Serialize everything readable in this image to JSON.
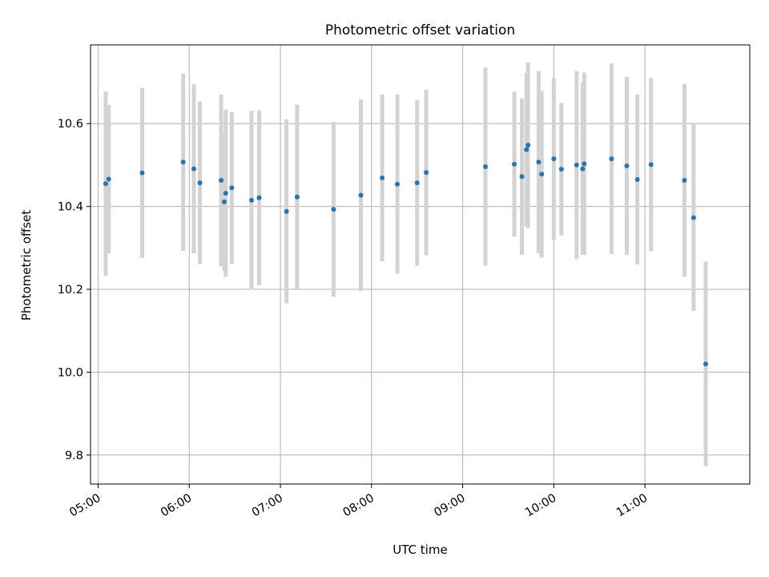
{
  "chart_data": {
    "type": "scatter",
    "title": "Photometric offset variation",
    "xlabel": "UTC time",
    "ylabel": "Photometric offset",
    "xlim": [
      "04:55",
      "12:09"
    ],
    "ylim": [
      9.73,
      10.79
    ],
    "grid": true,
    "x_ticks": [
      "05:00",
      "06:00",
      "07:00",
      "08:00",
      "09:00",
      "10:00",
      "11:00"
    ],
    "y_ticks": [
      9.8,
      10.0,
      10.2,
      10.4,
      10.6
    ],
    "y_tick_labels": [
      "9.8",
      "10.0",
      "10.2",
      "10.4",
      "10.6"
    ],
    "colors": {
      "point": "#1f77b4",
      "errorbar": "#d3d3d3",
      "grid": "#b0b0b0"
    },
    "series": [
      {
        "points": [
          {
            "t": "05:05",
            "y": 10.455,
            "lo": 10.233,
            "hi": 10.677
          },
          {
            "t": "05:07",
            "y": 10.466,
            "lo": 10.287,
            "hi": 10.645
          },
          {
            "t": "05:29",
            "y": 10.481,
            "lo": 10.276,
            "hi": 10.686
          },
          {
            "t": "05:56",
            "y": 10.507,
            "lo": 10.293,
            "hi": 10.721
          },
          {
            "t": "06:03",
            "y": 10.491,
            "lo": 10.287,
            "hi": 10.695
          },
          {
            "t": "06:07",
            "y": 10.457,
            "lo": 10.261,
            "hi": 10.653
          },
          {
            "t": "06:21",
            "y": 10.463,
            "lo": 10.256,
            "hi": 10.67
          },
          {
            "t": "06:23",
            "y": 10.411,
            "lo": 10.245,
            "hi": 10.577
          },
          {
            "t": "06:24",
            "y": 10.432,
            "lo": 10.23,
            "hi": 10.634
          },
          {
            "t": "06:28",
            "y": 10.445,
            "lo": 10.262,
            "hi": 10.628
          },
          {
            "t": "06:41",
            "y": 10.415,
            "lo": 10.199,
            "hi": 10.631
          },
          {
            "t": "06:46",
            "y": 10.421,
            "lo": 10.21,
            "hi": 10.632
          },
          {
            "t": "07:04",
            "y": 10.388,
            "lo": 10.166,
            "hi": 10.61
          },
          {
            "t": "07:11",
            "y": 10.423,
            "lo": 10.2,
            "hi": 10.646
          },
          {
            "t": "07:35",
            "y": 10.393,
            "lo": 10.182,
            "hi": 10.604
          },
          {
            "t": "07:53",
            "y": 10.427,
            "lo": 10.196,
            "hi": 10.658
          },
          {
            "t": "08:07",
            "y": 10.469,
            "lo": 10.268,
            "hi": 10.67
          },
          {
            "t": "08:17",
            "y": 10.454,
            "lo": 10.238,
            "hi": 10.67
          },
          {
            "t": "08:30",
            "y": 10.457,
            "lo": 10.257,
            "hi": 10.657
          },
          {
            "t": "08:36",
            "y": 10.482,
            "lo": 10.282,
            "hi": 10.682
          },
          {
            "t": "09:15",
            "y": 10.496,
            "lo": 10.257,
            "hi": 10.735
          },
          {
            "t": "09:34",
            "y": 10.502,
            "lo": 10.327,
            "hi": 10.677
          },
          {
            "t": "09:39",
            "y": 10.472,
            "lo": 10.283,
            "hi": 10.661
          },
          {
            "t": "09:42",
            "y": 10.537,
            "lo": 10.352,
            "hi": 10.722
          },
          {
            "t": "09:43",
            "y": 10.548,
            "lo": 10.348,
            "hi": 10.748
          },
          {
            "t": "09:50",
            "y": 10.507,
            "lo": 10.287,
            "hi": 10.727
          },
          {
            "t": "09:52",
            "y": 10.478,
            "lo": 10.277,
            "hi": 10.679
          },
          {
            "t": "10:00",
            "y": 10.515,
            "lo": 10.32,
            "hi": 10.71
          },
          {
            "t": "10:05",
            "y": 10.49,
            "lo": 10.33,
            "hi": 10.65
          },
          {
            "t": "10:15",
            "y": 10.5,
            "lo": 10.273,
            "hi": 10.727
          },
          {
            "t": "10:19",
            "y": 10.491,
            "lo": 10.283,
            "hi": 10.699
          },
          {
            "t": "10:20",
            "y": 10.503,
            "lo": 10.283,
            "hi": 10.723
          },
          {
            "t": "10:38",
            "y": 10.515,
            "lo": 10.285,
            "hi": 10.745
          },
          {
            "t": "10:48",
            "y": 10.498,
            "lo": 10.283,
            "hi": 10.713
          },
          {
            "t": "10:55",
            "y": 10.465,
            "lo": 10.26,
            "hi": 10.67
          },
          {
            "t": "11:04",
            "y": 10.501,
            "lo": 10.292,
            "hi": 10.71
          },
          {
            "t": "11:26",
            "y": 10.463,
            "lo": 10.23,
            "hi": 10.696
          },
          {
            "t": "11:32",
            "y": 10.373,
            "lo": 10.148,
            "hi": 10.598
          },
          {
            "t": "11:40",
            "y": 10.02,
            "lo": 9.773,
            "hi": 10.267
          }
        ]
      }
    ]
  }
}
